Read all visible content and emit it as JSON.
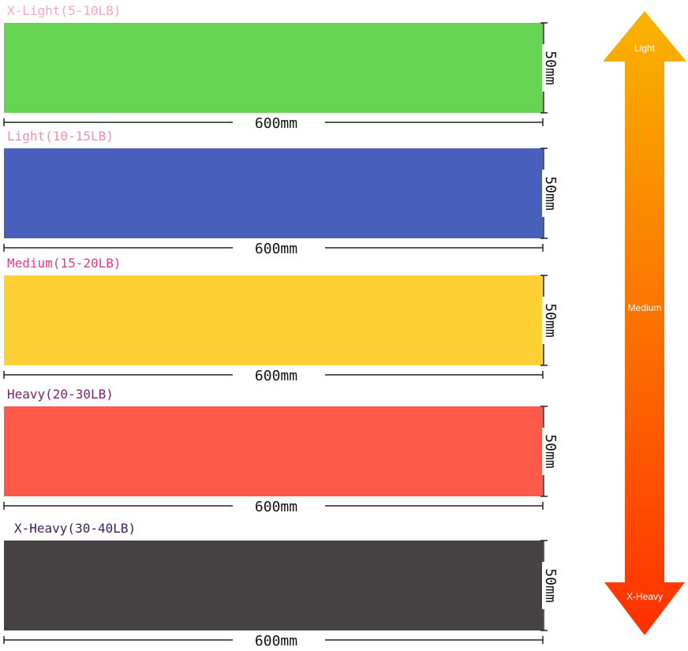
{
  "bands": [
    {
      "label": "X-Light(5-10LB)",
      "label_color": "#f5a9bd",
      "color": "#64d452",
      "length": "600mm",
      "width": "50mm"
    },
    {
      "label": "Light(10-15LB)",
      "label_color": "#f08db0",
      "color": "#4860bc",
      "length": "600mm",
      "width": "50mm"
    },
    {
      "label": "Medium(15-20LB)",
      "label_color": "#e8368f",
      "color": "#fdd033",
      "length": "600mm",
      "width": "50mm"
    },
    {
      "label": "Heavy(20-30LB)",
      "label_color": "#7b2170",
      "color": "#fe5a4a",
      "length": "600mm",
      "width": "50mm"
    },
    {
      "label": "X-Heavy(30-40LB)",
      "label_color": "#3e1a5e",
      "color": "#464244",
      "length": "600mm",
      "width": "50mm"
    }
  ],
  "scale": {
    "top": "Light",
    "middle": "Medium",
    "bottom": "X-Heavy",
    "top_color": "#f9b400",
    "bottom_color": "#ff3000"
  }
}
